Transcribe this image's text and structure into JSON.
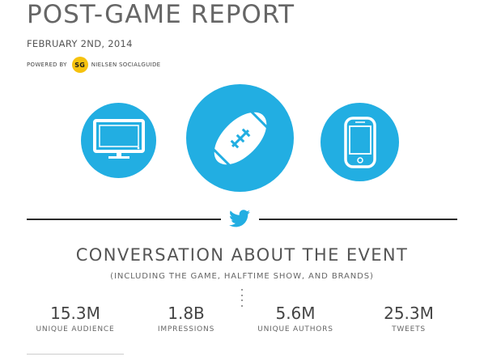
{
  "header": {
    "title": "POST-GAME REPORT",
    "date": "FEBRUARY  2ND, 2014",
    "powered_by": "POWERED BY",
    "sg_logo_text": "SG",
    "provider": "NIELSEN SOCIALGUIDE"
  },
  "icons": {
    "left": "tv-icon",
    "center": "football-icon",
    "right": "smartphone-icon",
    "divider": "twitter-bird-icon"
  },
  "colors": {
    "accent": "#22aee2",
    "sg_yellow": "#f6c20e",
    "text": "#555555",
    "divider": "#2a2a2a"
  },
  "section": {
    "title": "CONVERSATION ABOUT THE EVENT",
    "subtitle": "(INCLUDING THE GAME, HALFTIME SHOW, AND BRANDS)"
  },
  "stats": [
    {
      "value": "15.3M",
      "label": "UNIQUE AUDIENCE"
    },
    {
      "value": "1.8B",
      "label": "IMPRESSIONS"
    },
    {
      "value": "5.6M",
      "label": "UNIQUE AUTHORS"
    },
    {
      "value": "25.3M",
      "label": "TWEETS"
    }
  ]
}
